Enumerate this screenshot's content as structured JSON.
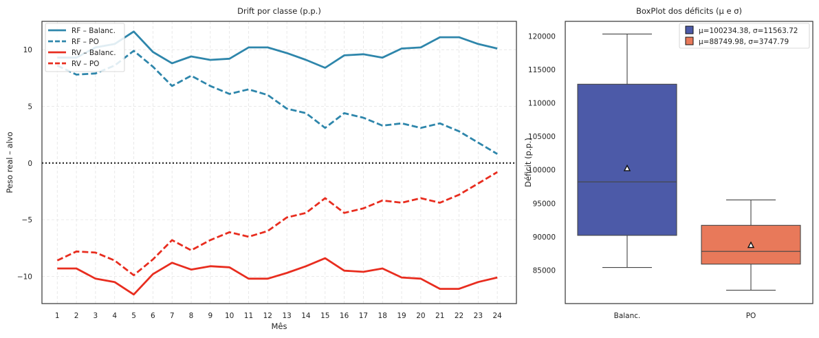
{
  "chart_data": [
    {
      "type": "line",
      "title": "Drift por classe (p.p.)",
      "xlabel": "Mês",
      "ylabel": "Peso real – alvo",
      "x": [
        1,
        2,
        3,
        4,
        5,
        6,
        7,
        8,
        9,
        10,
        11,
        12,
        13,
        14,
        15,
        16,
        17,
        18,
        19,
        20,
        21,
        22,
        23,
        24
      ],
      "xlim": [
        0.2,
        25
      ],
      "ylim": [
        -12.4,
        12.5
      ],
      "yticks": [
        -10,
        -5,
        0,
        5,
        10
      ],
      "ytick_labels": [
        "−10",
        "−5",
        "0",
        "5",
        "10"
      ],
      "grid": true,
      "legend_position": "upper-left",
      "reference_line": {
        "y": 0,
        "style": "dotted",
        "color": "#222222"
      },
      "series": [
        {
          "name": "RF – Balanc.",
          "color": "#2e86ab",
          "style": "solid",
          "values": [
            9.3,
            9.3,
            10.2,
            10.5,
            11.6,
            9.8,
            8.8,
            9.4,
            9.1,
            9.2,
            10.2,
            10.2,
            9.7,
            9.1,
            8.4,
            9.5,
            9.6,
            9.3,
            10.1,
            10.2,
            11.1,
            11.1,
            10.5,
            10.1
          ]
        },
        {
          "name": "RF – PO",
          "color": "#2e86ab",
          "style": "dashed",
          "values": [
            8.6,
            7.8,
            7.9,
            8.6,
            9.9,
            8.5,
            6.8,
            7.7,
            6.8,
            6.1,
            6.5,
            6.0,
            4.8,
            4.4,
            3.1,
            4.4,
            4.0,
            3.3,
            3.5,
            3.1,
            3.5,
            2.8,
            1.8,
            0.8
          ]
        },
        {
          "name": "RV – Balanc.",
          "color": "#e82d1f",
          "style": "solid",
          "values": [
            -9.3,
            -9.3,
            -10.2,
            -10.5,
            -11.6,
            -9.8,
            -8.8,
            -9.4,
            -9.1,
            -9.2,
            -10.2,
            -10.2,
            -9.7,
            -9.1,
            -8.4,
            -9.5,
            -9.6,
            -9.3,
            -10.1,
            -10.2,
            -11.1,
            -11.1,
            -10.5,
            -10.1
          ]
        },
        {
          "name": "RV – PO",
          "color": "#e82d1f",
          "style": "dashed",
          "values": [
            -8.6,
            -7.8,
            -7.9,
            -8.6,
            -9.9,
            -8.5,
            -6.8,
            -7.7,
            -6.8,
            -6.1,
            -6.5,
            -6.0,
            -4.8,
            -4.4,
            -3.1,
            -4.4,
            -4.0,
            -3.3,
            -3.5,
            -3.1,
            -3.5,
            -2.8,
            -1.8,
            -0.8
          ]
        }
      ]
    },
    {
      "type": "box",
      "title": "BoxPlot dos déficits (μ e σ)",
      "xlabel": "",
      "ylabel": "Déficit (p.p.)",
      "ylim": [
        80000,
        122200
      ],
      "yticks": [
        85000,
        90000,
        95000,
        100000,
        105000,
        110000,
        115000,
        120000
      ],
      "grid": false,
      "legend_position": "upper-right",
      "categories": [
        "Balanc.",
        "PO"
      ],
      "boxes": [
        {
          "category": "Balanc.",
          "color": "#4c5aa8",
          "whisker_low": 85400,
          "q1": 90200,
          "median": 98200,
          "q3": 112800,
          "whisker_high": 120300,
          "mean": 100234.38,
          "std": 11563.72,
          "legend": "μ=100234.38, σ=11563.72"
        },
        {
          "category": "PO",
          "color": "#e8795a",
          "whisker_low": 82000,
          "q1": 85900,
          "median": 87800,
          "q3": 91700,
          "whisker_high": 95500,
          "mean": 88749.98,
          "std": 3747.79,
          "legend": "μ=88749.98, σ=3747.79"
        }
      ]
    }
  ]
}
